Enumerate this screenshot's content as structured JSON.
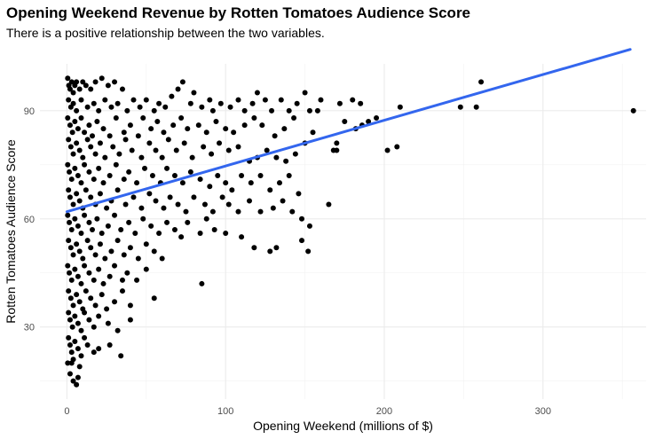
{
  "chart_data": {
    "type": "scatter",
    "title": "Opening Weekend Revenue by Rotten Tomatoes Audience Score",
    "subtitle": "There is a positive relationship between the two variables.",
    "xlabel": "Opening Weekend (millions of $)",
    "ylabel": "Rotten Tomatoes Audience Score",
    "xlim": [
      -17,
      365
    ],
    "ylim": [
      10,
      103
    ],
    "x_ticks": [
      0,
      100,
      200,
      300
    ],
    "y_ticks": [
      30,
      60,
      90
    ],
    "x_tick_labels": [
      "0",
      "100",
      "200",
      "300"
    ],
    "y_tick_labels": [
      "30",
      "60",
      "90"
    ],
    "grid": true,
    "legend": "none",
    "colors": {
      "points": "#000000",
      "trend": "#3366ee",
      "grid": "#ebebeb"
    },
    "trend_line": {
      "x": [
        0,
        355
      ],
      "y": [
        62,
        107
      ]
    },
    "points": [
      [
        0.5,
        99
      ],
      [
        1.2,
        97
      ],
      [
        2,
        96
      ],
      [
        3,
        98
      ],
      [
        4,
        95
      ],
      [
        5,
        97
      ],
      [
        6,
        98
      ],
      [
        8,
        96
      ],
      [
        10,
        98
      ],
      [
        12,
        97
      ],
      [
        15,
        96
      ],
      [
        18,
        98
      ],
      [
        22,
        99
      ],
      [
        26,
        97
      ],
      [
        30,
        98
      ],
      [
        35,
        96
      ],
      [
        1,
        93
      ],
      [
        2.5,
        91
      ],
      [
        4,
        92
      ],
      [
        6,
        90
      ],
      [
        9,
        93
      ],
      [
        13,
        91
      ],
      [
        17,
        92
      ],
      [
        20,
        90
      ],
      [
        24,
        93
      ],
      [
        28,
        91
      ],
      [
        32,
        92
      ],
      [
        38,
        90
      ],
      [
        42,
        93
      ],
      [
        46,
        91
      ],
      [
        50,
        93
      ],
      [
        55,
        90
      ],
      [
        58,
        92
      ],
      [
        62,
        91
      ],
      [
        66,
        94
      ],
      [
        70,
        96
      ],
      [
        73,
        98
      ],
      [
        78,
        92
      ],
      [
        80,
        95
      ],
      [
        85,
        91
      ],
      [
        90,
        93
      ],
      [
        92,
        90
      ],
      [
        97,
        92
      ],
      [
        103,
        91
      ],
      [
        108,
        93
      ],
      [
        112,
        90
      ],
      [
        117,
        92
      ],
      [
        120,
        95
      ],
      [
        125,
        93
      ],
      [
        129,
        90
      ],
      [
        135,
        93
      ],
      [
        140,
        90
      ],
      [
        145,
        92
      ],
      [
        150,
        95
      ],
      [
        153,
        90
      ],
      [
        158,
        90
      ],
      [
        160,
        93
      ],
      [
        172,
        92
      ],
      [
        180,
        93
      ],
      [
        185,
        92
      ],
      [
        190,
        87
      ],
      [
        195,
        88
      ],
      [
        210,
        91
      ],
      [
        248,
        91
      ],
      [
        258,
        91
      ],
      [
        261,
        98
      ],
      [
        357,
        90
      ],
      [
        0.5,
        88
      ],
      [
        2,
        86
      ],
      [
        3.5,
        84
      ],
      [
        5,
        87
      ],
      [
        7,
        85
      ],
      [
        9,
        88
      ],
      [
        11,
        84
      ],
      [
        14,
        86
      ],
      [
        16,
        83
      ],
      [
        19,
        87
      ],
      [
        23,
        85
      ],
      [
        27,
        83
      ],
      [
        31,
        88
      ],
      [
        36,
        84
      ],
      [
        40,
        86
      ],
      [
        45,
        83
      ],
      [
        48,
        88
      ],
      [
        53,
        85
      ],
      [
        57,
        87
      ],
      [
        61,
        84
      ],
      [
        67,
        86
      ],
      [
        72,
        88
      ],
      [
        76,
        85
      ],
      [
        83,
        86
      ],
      [
        88,
        84
      ],
      [
        94,
        87
      ],
      [
        100,
        85
      ],
      [
        105,
        84
      ],
      [
        112,
        86
      ],
      [
        118,
        88
      ],
      [
        123,
        86
      ],
      [
        131,
        83
      ],
      [
        137,
        85
      ],
      [
        143,
        88
      ],
      [
        150,
        81
      ],
      [
        155,
        84
      ],
      [
        170,
        81
      ],
      [
        175,
        87
      ],
      [
        182,
        85
      ],
      [
        186,
        86
      ],
      [
        202,
        79
      ],
      [
        208,
        80
      ],
      [
        1,
        82
      ],
      [
        2.5,
        80
      ],
      [
        4,
        78
      ],
      [
        6,
        81
      ],
      [
        8,
        79
      ],
      [
        10,
        77
      ],
      [
        13,
        82
      ],
      [
        15,
        80
      ],
      [
        18,
        78
      ],
      [
        21,
        81
      ],
      [
        24,
        77
      ],
      [
        29,
        80
      ],
      [
        33,
        78
      ],
      [
        37,
        82
      ],
      [
        41,
        79
      ],
      [
        47,
        77
      ],
      [
        52,
        81
      ],
      [
        56,
        79
      ],
      [
        60,
        77
      ],
      [
        64,
        82
      ],
      [
        69,
        79
      ],
      [
        74,
        81
      ],
      [
        79,
        77
      ],
      [
        86,
        80
      ],
      [
        91,
        78
      ],
      [
        96,
        81
      ],
      [
        102,
        79
      ],
      [
        108,
        80
      ],
      [
        115,
        76
      ],
      [
        120,
        77
      ],
      [
        126,
        79
      ],
      [
        132,
        77
      ],
      [
        138,
        76
      ],
      [
        144,
        78
      ],
      [
        168,
        79
      ],
      [
        170,
        79
      ],
      [
        0.5,
        75
      ],
      [
        1.5,
        73
      ],
      [
        3,
        71
      ],
      [
        5,
        74
      ],
      [
        7,
        72
      ],
      [
        9,
        70
      ],
      [
        11,
        75
      ],
      [
        14,
        73
      ],
      [
        17,
        71
      ],
      [
        20,
        74
      ],
      [
        23,
        70
      ],
      [
        27,
        72
      ],
      [
        31,
        75
      ],
      [
        36,
        71
      ],
      [
        39,
        73
      ],
      [
        44,
        70
      ],
      [
        49,
        74
      ],
      [
        54,
        72
      ],
      [
        59,
        70
      ],
      [
        63,
        74
      ],
      [
        68,
        72
      ],
      [
        73,
        70
      ],
      [
        78,
        73
      ],
      [
        84,
        71
      ],
      [
        90,
        69
      ],
      [
        95,
        72
      ],
      [
        100,
        70
      ],
      [
        104,
        68
      ],
      [
        110,
        72
      ],
      [
        116,
        70
      ],
      [
        122,
        72
      ],
      [
        128,
        68
      ],
      [
        134,
        70
      ],
      [
        140,
        72
      ],
      [
        146,
        67
      ],
      [
        1,
        68
      ],
      [
        2,
        66
      ],
      [
        4,
        64
      ],
      [
        6,
        67
      ],
      [
        8,
        65
      ],
      [
        10,
        63
      ],
      [
        12,
        68
      ],
      [
        15,
        66
      ],
      [
        18,
        64
      ],
      [
        21,
        67
      ],
      [
        25,
        63
      ],
      [
        28,
        65
      ],
      [
        32,
        68
      ],
      [
        37,
        64
      ],
      [
        42,
        66
      ],
      [
        47,
        63
      ],
      [
        52,
        67
      ],
      [
        56,
        65
      ],
      [
        61,
        63
      ],
      [
        65,
        66
      ],
      [
        70,
        64
      ],
      [
        75,
        62
      ],
      [
        80,
        66
      ],
      [
        87,
        64
      ],
      [
        92,
        62
      ],
      [
        98,
        66
      ],
      [
        102,
        64
      ],
      [
        108,
        62
      ],
      [
        115,
        65
      ],
      [
        122,
        62
      ],
      [
        130,
        63
      ],
      [
        136,
        65
      ],
      [
        142,
        62
      ],
      [
        148,
        60
      ],
      [
        165,
        64
      ],
      [
        0.5,
        61
      ],
      [
        1.5,
        59
      ],
      [
        3,
        57
      ],
      [
        5,
        60
      ],
      [
        7,
        58
      ],
      [
        9,
        56
      ],
      [
        11,
        61
      ],
      [
        14,
        59
      ],
      [
        16,
        57
      ],
      [
        19,
        60
      ],
      [
        22,
        56
      ],
      [
        26,
        58
      ],
      [
        30,
        61
      ],
      [
        34,
        57
      ],
      [
        39,
        59
      ],
      [
        43,
        56
      ],
      [
        48,
        60
      ],
      [
        53,
        58
      ],
      [
        58,
        56
      ],
      [
        63,
        59
      ],
      [
        68,
        57
      ],
      [
        72,
        55
      ],
      [
        76,
        59
      ],
      [
        84,
        56
      ],
      [
        88,
        60
      ],
      [
        93,
        57
      ],
      [
        100,
        56
      ],
      [
        110,
        55
      ],
      [
        118,
        52
      ],
      [
        128,
        51
      ],
      [
        132,
        52
      ],
      [
        148,
        54
      ],
      [
        153,
        58
      ],
      [
        152,
        51
      ],
      [
        1,
        54
      ],
      [
        2.5,
        52
      ],
      [
        4,
        50
      ],
      [
        6,
        53
      ],
      [
        8,
        51
      ],
      [
        10,
        49
      ],
      [
        13,
        54
      ],
      [
        15,
        52
      ],
      [
        18,
        50
      ],
      [
        21,
        53
      ],
      [
        24,
        49
      ],
      [
        28,
        51
      ],
      [
        32,
        54
      ],
      [
        36,
        50
      ],
      [
        40,
        52
      ],
      [
        45,
        49
      ],
      [
        50,
        53
      ],
      [
        55,
        51
      ],
      [
        60,
        49
      ],
      [
        0.5,
        47
      ],
      [
        1.5,
        45
      ],
      [
        3,
        43
      ],
      [
        5,
        46
      ],
      [
        7,
        44
      ],
      [
        9,
        42
      ],
      [
        11,
        47
      ],
      [
        14,
        45
      ],
      [
        17,
        43
      ],
      [
        20,
        46
      ],
      [
        23,
        42
      ],
      [
        27,
        44
      ],
      [
        30,
        47
      ],
      [
        35,
        43
      ],
      [
        38,
        45
      ],
      [
        44,
        43
      ],
      [
        50,
        46
      ],
      [
        85,
        42
      ],
      [
        1,
        40
      ],
      [
        2.5,
        38
      ],
      [
        4,
        36
      ],
      [
        6,
        39
      ],
      [
        8,
        37
      ],
      [
        10,
        35
      ],
      [
        12,
        40
      ],
      [
        15,
        38
      ],
      [
        18,
        36
      ],
      [
        22,
        39
      ],
      [
        25,
        35
      ],
      [
        30,
        37
      ],
      [
        35,
        40
      ],
      [
        40,
        36
      ],
      [
        55,
        38
      ],
      [
        1,
        34
      ],
      [
        2,
        32
      ],
      [
        3.5,
        30
      ],
      [
        5,
        33
      ],
      [
        7,
        31
      ],
      [
        9,
        29
      ],
      [
        11,
        34
      ],
      [
        14,
        32
      ],
      [
        17,
        30
      ],
      [
        20,
        33
      ],
      [
        26,
        31
      ],
      [
        32,
        29
      ],
      [
        40,
        32
      ],
      [
        1,
        27
      ],
      [
        2,
        25
      ],
      [
        3,
        23
      ],
      [
        4,
        21
      ],
      [
        5,
        26
      ],
      [
        7,
        24
      ],
      [
        8,
        19
      ],
      [
        9,
        22
      ],
      [
        11,
        27
      ],
      [
        13,
        25
      ],
      [
        17,
        23
      ],
      [
        20,
        24
      ],
      [
        27,
        25
      ],
      [
        34,
        22
      ],
      [
        0.5,
        20
      ],
      [
        2,
        17
      ],
      [
        4,
        15
      ],
      [
        6,
        14
      ],
      [
        7,
        16
      ],
      [
        3,
        20
      ]
    ]
  }
}
